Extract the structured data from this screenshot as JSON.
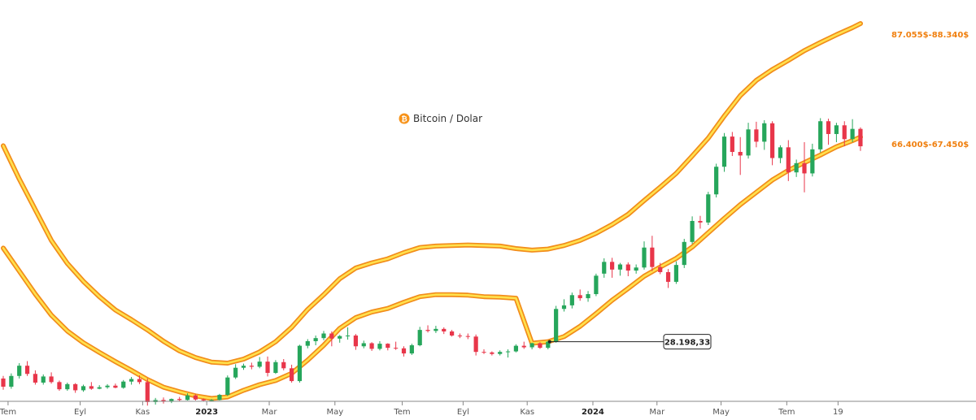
{
  "chart_data": {
    "type": "candlestick",
    "title": "Bitcoin / Dolar",
    "title_icon": "bitcoin-icon",
    "ylim": [
      14000,
      95000
    ],
    "x_ticks": [
      {
        "label": "Tem",
        "t": 0.6,
        "bold": false
      },
      {
        "label": "Eyl",
        "t": 9.6,
        "bold": false
      },
      {
        "label": "Kas",
        "t": 17.4,
        "bold": false
      },
      {
        "label": "2023",
        "t": 25.4,
        "bold": true
      },
      {
        "label": "Mar",
        "t": 33.2,
        "bold": false
      },
      {
        "label": "May",
        "t": 41.4,
        "bold": false
      },
      {
        "label": "Tem",
        "t": 49.8,
        "bold": false
      },
      {
        "label": "Eyl",
        "t": 57.4,
        "bold": false
      },
      {
        "label": "Kas",
        "t": 65.4,
        "bold": false
      },
      {
        "label": "2024",
        "t": 73.6,
        "bold": true
      },
      {
        "label": "Mar",
        "t": 81.6,
        "bold": false
      },
      {
        "label": "May",
        "t": 89.6,
        "bold": false
      },
      {
        "label": "Tem",
        "t": 97.8,
        "bold": false
      },
      {
        "label": "19",
        "t": 104.2,
        "bold": false
      }
    ],
    "candles": [
      [
        0,
        21000,
        21500,
        18800,
        19400
      ],
      [
        1,
        19400,
        22000,
        19000,
        21500
      ],
      [
        2,
        21500,
        24000,
        21000,
        23500
      ],
      [
        3,
        23500,
        24400,
        21500,
        21900
      ],
      [
        4,
        21900,
        22600,
        19800,
        20200
      ],
      [
        5,
        20200,
        21800,
        19800,
        21400
      ],
      [
        6,
        21400,
        22200,
        20000,
        20300
      ],
      [
        7,
        20300,
        20600,
        18600,
        18900
      ],
      [
        8,
        18900,
        20200,
        18600,
        19900
      ],
      [
        9,
        19900,
        20100,
        18200,
        18700
      ],
      [
        10,
        18700,
        19800,
        18400,
        19500
      ],
      [
        11,
        19500,
        20300,
        18800,
        19000
      ],
      [
        12,
        19000,
        19700,
        18900,
        19300
      ],
      [
        13,
        19300,
        19900,
        19000,
        19600
      ],
      [
        14,
        19600,
        20000,
        19100,
        19200
      ],
      [
        15,
        19200,
        20700,
        19000,
        20400
      ],
      [
        16,
        20400,
        21300,
        19800,
        20900
      ],
      [
        17,
        20900,
        21600,
        19900,
        20300
      ],
      [
        18,
        20300,
        21000,
        15700,
        16400
      ],
      [
        19,
        16400,
        17200,
        15900,
        16800
      ],
      [
        20,
        16800,
        17300,
        16100,
        16500
      ],
      [
        21,
        16500,
        17100,
        16200,
        17000
      ],
      [
        22,
        17000,
        17400,
        16600,
        16800
      ],
      [
        23,
        16800,
        18100,
        16700,
        17700
      ],
      [
        24,
        17700,
        17900,
        16700,
        16900
      ],
      [
        25,
        16900,
        17100,
        16600,
        16700
      ],
      [
        26,
        16700,
        17000,
        16500,
        16800
      ],
      [
        27,
        16800,
        18000,
        16700,
        17800
      ],
      [
        28,
        17800,
        21600,
        17600,
        21200
      ],
      [
        29,
        21200,
        23800,
        20900,
        23100
      ],
      [
        30,
        23100,
        23900,
        22700,
        23500
      ],
      [
        31,
        23500,
        24100,
        22800,
        23300
      ],
      [
        32,
        23300,
        25200,
        23000,
        24300
      ],
      [
        33,
        24300,
        25300,
        21400,
        22100
      ],
      [
        34,
        22100,
        24600,
        21900,
        24200
      ],
      [
        35,
        24200,
        24800,
        22600,
        23000
      ],
      [
        36,
        23000,
        23700,
        20200,
        20500
      ],
      [
        37,
        20500,
        27600,
        20200,
        27400
      ],
      [
        38,
        27400,
        28700,
        26900,
        28300
      ],
      [
        39,
        28300,
        29400,
        27500,
        28900
      ],
      [
        40,
        28900,
        30300,
        28500,
        29800
      ],
      [
        41,
        29800,
        30200,
        27300,
        28800
      ],
      [
        42,
        28800,
        29500,
        28000,
        29300
      ],
      [
        43,
        29300,
        31000,
        28600,
        29400
      ],
      [
        44,
        29400,
        29700,
        26600,
        27300
      ],
      [
        45,
        27300,
        28400,
        26900,
        27900
      ],
      [
        46,
        27900,
        28100,
        26400,
        26800
      ],
      [
        47,
        26800,
        28300,
        26500,
        27800
      ],
      [
        48,
        27800,
        27900,
        26500,
        27000
      ],
      [
        49,
        27000,
        28200,
        26600,
        26900
      ],
      [
        50,
        26900,
        27300,
        25300,
        25900
      ],
      [
        51,
        25900,
        27800,
        25600,
        27500
      ],
      [
        52,
        27500,
        31100,
        27300,
        30500
      ],
      [
        53,
        30500,
        31400,
        30000,
        30300
      ],
      [
        54,
        30300,
        31300,
        29900,
        30700
      ],
      [
        55,
        30700,
        31000,
        29700,
        30200
      ],
      [
        56,
        30200,
        30500,
        29200,
        29400
      ],
      [
        57,
        29400,
        29800,
        28900,
        29300
      ],
      [
        58,
        29300,
        29800,
        28700,
        29200
      ],
      [
        59,
        29200,
        29600,
        25500,
        26200
      ],
      [
        60,
        26200,
        26700,
        25800,
        26100
      ],
      [
        61,
        26100,
        26300,
        25500,
        25800
      ],
      [
        62,
        25800,
        26500,
        25500,
        26200
      ],
      [
        63,
        26200,
        26700,
        25100,
        26300
      ],
      [
        64,
        26300,
        27700,
        26100,
        27400
      ],
      [
        65,
        27400,
        28200,
        26800,
        27100
      ],
      [
        66,
        27100,
        28000,
        26700,
        27900
      ],
      [
        67,
        27900,
        28100,
        26800,
        27000
      ],
      [
        68,
        27000,
        28400,
        26700,
        28198
      ],
      [
        69,
        28198,
        35200,
        28000,
        34600
      ],
      [
        70,
        34600,
        36500,
        34100,
        35300
      ],
      [
        71,
        35300,
        37800,
        34700,
        37300
      ],
      [
        72,
        37300,
        38400,
        36200,
        36700
      ],
      [
        73,
        36700,
        38100,
        36000,
        37500
      ],
      [
        74,
        37500,
        41500,
        37100,
        41100
      ],
      [
        75,
        41500,
        44500,
        40700,
        43800
      ],
      [
        76,
        43800,
        44600,
        40700,
        42300
      ],
      [
        77,
        42300,
        43600,
        41100,
        43300
      ],
      [
        78,
        43300,
        43700,
        41000,
        42100
      ],
      [
        79,
        42100,
        43300,
        41500,
        42700
      ],
      [
        80,
        42700,
        47800,
        42300,
        46600
      ],
      [
        81,
        46600,
        48900,
        42000,
        42800
      ],
      [
        82,
        42800,
        43600,
        41400,
        41800
      ],
      [
        83,
        41800,
        42400,
        38700,
        39900
      ],
      [
        84,
        39900,
        43900,
        39500,
        43200
      ],
      [
        85,
        43200,
        48300,
        42600,
        47700
      ],
      [
        86,
        47700,
        52700,
        47300,
        51800
      ],
      [
        87,
        51800,
        52800,
        50300,
        51500
      ],
      [
        88,
        51500,
        57500,
        51000,
        57000
      ],
      [
        89,
        57000,
        63000,
        56400,
        62400
      ],
      [
        90,
        62400,
        69000,
        61400,
        68300
      ],
      [
        91,
        68300,
        69200,
        64500,
        65300
      ],
      [
        92,
        65300,
        68200,
        60800,
        64600
      ],
      [
        93,
        64600,
        71000,
        64000,
        69700
      ],
      [
        94,
        69700,
        71200,
        66200,
        67300
      ],
      [
        95,
        67300,
        71500,
        65700,
        70900
      ],
      [
        96,
        70900,
        71300,
        62700,
        64100
      ],
      [
        97,
        64100,
        66600,
        63100,
        66200
      ],
      [
        98,
        66200,
        67600,
        59600,
        61300
      ],
      [
        99,
        61300,
        63800,
        60400,
        63100
      ],
      [
        100,
        63100,
        67200,
        57400,
        61100
      ],
      [
        101,
        61100,
        66900,
        60500,
        65800
      ],
      [
        102,
        65800,
        71900,
        65200,
        71300
      ],
      [
        103,
        71300,
        71800,
        66700,
        68800
      ],
      [
        104,
        68800,
        71000,
        67200,
        70500
      ],
      [
        105,
        70500,
        71300,
        66400,
        67800
      ],
      [
        106,
        67800,
        71700,
        67200,
        69800
      ],
      [
        107,
        69800,
        70100,
        65500,
        66400
      ]
    ],
    "bands": [
      {
        "name": "upper-band",
        "color": "#f5a000",
        "points": [
          [
            0,
            66500
          ],
          [
            2,
            60000
          ],
          [
            4,
            54000
          ],
          [
            6,
            48000
          ],
          [
            8,
            43500
          ],
          [
            10,
            40000
          ],
          [
            12,
            37000
          ],
          [
            14,
            34400
          ],
          [
            16,
            32500
          ],
          [
            18,
            30500
          ],
          [
            20,
            28300
          ],
          [
            22,
            26400
          ],
          [
            24,
            25100
          ],
          [
            26,
            24200
          ],
          [
            28,
            24000
          ],
          [
            30,
            24800
          ],
          [
            32,
            26200
          ],
          [
            34,
            28200
          ],
          [
            36,
            31000
          ],
          [
            38,
            34500
          ],
          [
            40,
            37400
          ],
          [
            42,
            40500
          ],
          [
            44,
            42600
          ],
          [
            46,
            43600
          ],
          [
            48,
            44400
          ],
          [
            50,
            45600
          ],
          [
            52,
            46600
          ],
          [
            54,
            46900
          ],
          [
            56,
            47000
          ],
          [
            58,
            47100
          ],
          [
            60,
            47000
          ],
          [
            62,
            46900
          ],
          [
            64,
            46400
          ],
          [
            66,
            46100
          ],
          [
            68,
            46300
          ],
          [
            70,
            47000
          ],
          [
            72,
            48000
          ],
          [
            74,
            49400
          ],
          [
            76,
            51100
          ],
          [
            78,
            53100
          ],
          [
            80,
            55800
          ],
          [
            82,
            58400
          ],
          [
            84,
            61100
          ],
          [
            86,
            64500
          ],
          [
            88,
            68000
          ],
          [
            90,
            72300
          ],
          [
            92,
            76300
          ],
          [
            94,
            79300
          ],
          [
            96,
            81400
          ],
          [
            98,
            83200
          ],
          [
            100,
            85100
          ],
          [
            102,
            86700
          ],
          [
            104,
            88200
          ],
          [
            106,
            89600
          ],
          [
            107,
            90400
          ]
        ]
      },
      {
        "name": "lower-band",
        "color": "#f5a000",
        "points": [
          [
            0,
            46500
          ],
          [
            2,
            42000
          ],
          [
            4,
            37500
          ],
          [
            6,
            33400
          ],
          [
            8,
            30300
          ],
          [
            10,
            28000
          ],
          [
            12,
            26100
          ],
          [
            14,
            24300
          ],
          [
            16,
            22600
          ],
          [
            18,
            20800
          ],
          [
            20,
            19300
          ],
          [
            22,
            18400
          ],
          [
            24,
            17600
          ],
          [
            26,
            17100
          ],
          [
            28,
            17400
          ],
          [
            30,
            18700
          ],
          [
            32,
            19800
          ],
          [
            34,
            20600
          ],
          [
            36,
            22000
          ],
          [
            38,
            24600
          ],
          [
            40,
            27500
          ],
          [
            42,
            30800
          ],
          [
            44,
            32900
          ],
          [
            46,
            34000
          ],
          [
            48,
            34700
          ],
          [
            50,
            35900
          ],
          [
            52,
            37000
          ],
          [
            54,
            37400
          ],
          [
            56,
            37400
          ],
          [
            58,
            37300
          ],
          [
            60,
            37000
          ],
          [
            62,
            36900
          ],
          [
            64,
            36700
          ],
          [
            66,
            27900
          ],
          [
            68,
            28198
          ],
          [
            70,
            29200
          ],
          [
            72,
            31200
          ],
          [
            74,
            33700
          ],
          [
            76,
            36300
          ],
          [
            78,
            38600
          ],
          [
            80,
            41000
          ],
          [
            82,
            42800
          ],
          [
            84,
            44500
          ],
          [
            86,
            46700
          ],
          [
            88,
            49500
          ],
          [
            90,
            52300
          ],
          [
            92,
            55000
          ],
          [
            94,
            57400
          ],
          [
            96,
            59800
          ],
          [
            98,
            61700
          ],
          [
            100,
            63200
          ],
          [
            102,
            64700
          ],
          [
            104,
            66300
          ],
          [
            106,
            67500
          ],
          [
            107,
            68200
          ]
        ]
      }
    ],
    "band_labels": [
      {
        "text": "87.055$-88.340$",
        "color": "#f08010",
        "value": 88340
      },
      {
        "text": "66.400$-67.450$",
        "color": "#f08010",
        "value": 66900
      }
    ],
    "callout": {
      "label": "28.198,33",
      "t": 68,
      "value": 28198
    }
  }
}
